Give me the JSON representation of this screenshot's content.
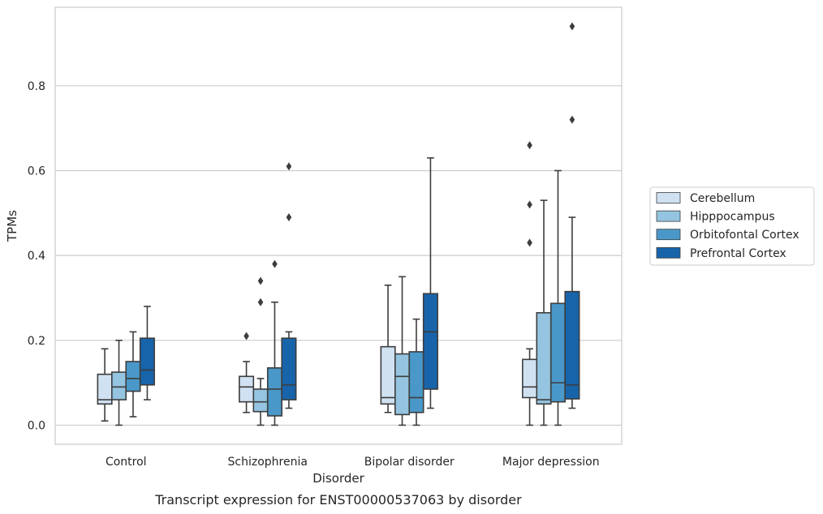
{
  "chart_data": {
    "type": "box",
    "categories": [
      "Control",
      "Schizophrenia",
      "Bipolar disorder",
      "Major depression"
    ],
    "xlabel": "Disorder",
    "ylabel": "TPMs",
    "caption": "Transcript expression for ENST00000537063 by disorder",
    "ylim": [
      -0.045,
      0.985
    ],
    "yticks": [
      0.0,
      0.2,
      0.4,
      0.6,
      0.8
    ],
    "ytick_labels": [
      "0.0",
      "0.2",
      "0.4",
      "0.6",
      "0.8"
    ],
    "grid": "horizontal",
    "legend_position": "right",
    "series": [
      {
        "name": "Cerebellum",
        "color": "#d0e1f2",
        "boxes": [
          {
            "whisker_low": 0.01,
            "q1": 0.05,
            "median": 0.06,
            "q3": 0.12,
            "whisker_high": 0.18,
            "outliers": []
          },
          {
            "whisker_low": 0.03,
            "q1": 0.055,
            "median": 0.09,
            "q3": 0.115,
            "whisker_high": 0.15,
            "outliers": [
              0.21
            ]
          },
          {
            "whisker_low": 0.03,
            "q1": 0.05,
            "median": 0.065,
            "q3": 0.185,
            "whisker_high": 0.33,
            "outliers": []
          },
          {
            "whisker_low": 0.0,
            "q1": 0.065,
            "median": 0.09,
            "q3": 0.155,
            "whisker_high": 0.18,
            "outliers": [
              0.43,
              0.52,
              0.66
            ]
          }
        ]
      },
      {
        "name": "Hipppocampus",
        "color": "#94c4df",
        "boxes": [
          {
            "whisker_low": 0.0,
            "q1": 0.06,
            "median": 0.09,
            "q3": 0.125,
            "whisker_high": 0.2,
            "outliers": []
          },
          {
            "whisker_low": 0.0,
            "q1": 0.032,
            "median": 0.055,
            "q3": 0.085,
            "whisker_high": 0.11,
            "outliers": [
              0.29,
              0.34
            ]
          },
          {
            "whisker_low": 0.0,
            "q1": 0.025,
            "median": 0.115,
            "q3": 0.168,
            "whisker_high": 0.35,
            "outliers": []
          },
          {
            "whisker_low": 0.0,
            "q1": 0.05,
            "median": 0.06,
            "q3": 0.265,
            "whisker_high": 0.53,
            "outliers": []
          }
        ]
      },
      {
        "name": "Orbitofontal Cortex",
        "color": "#4a98c9",
        "boxes": [
          {
            "whisker_low": 0.02,
            "q1": 0.08,
            "median": 0.11,
            "q3": 0.15,
            "whisker_high": 0.22,
            "outliers": []
          },
          {
            "whisker_low": 0.0,
            "q1": 0.022,
            "median": 0.085,
            "q3": 0.135,
            "whisker_high": 0.29,
            "outliers": [
              0.38
            ]
          },
          {
            "whisker_low": 0.0,
            "q1": 0.03,
            "median": 0.065,
            "q3": 0.173,
            "whisker_high": 0.25,
            "outliers": []
          },
          {
            "whisker_low": 0.0,
            "q1": 0.055,
            "median": 0.1,
            "q3": 0.287,
            "whisker_high": 0.6,
            "outliers": []
          }
        ]
      },
      {
        "name": "Prefrontal Cortex",
        "color": "#1764ab",
        "boxes": [
          {
            "whisker_low": 0.06,
            "q1": 0.095,
            "median": 0.13,
            "q3": 0.205,
            "whisker_high": 0.28,
            "outliers": []
          },
          {
            "whisker_low": 0.04,
            "q1": 0.06,
            "median": 0.095,
            "q3": 0.205,
            "whisker_high": 0.22,
            "outliers": [
              0.49,
              0.61
            ]
          },
          {
            "whisker_low": 0.04,
            "q1": 0.085,
            "median": 0.22,
            "q3": 0.31,
            "whisker_high": 0.63,
            "outliers": []
          },
          {
            "whisker_low": 0.04,
            "q1": 0.062,
            "median": 0.095,
            "q3": 0.315,
            "whisker_high": 0.49,
            "outliers": [
              0.72,
              0.94
            ]
          }
        ]
      }
    ]
  }
}
